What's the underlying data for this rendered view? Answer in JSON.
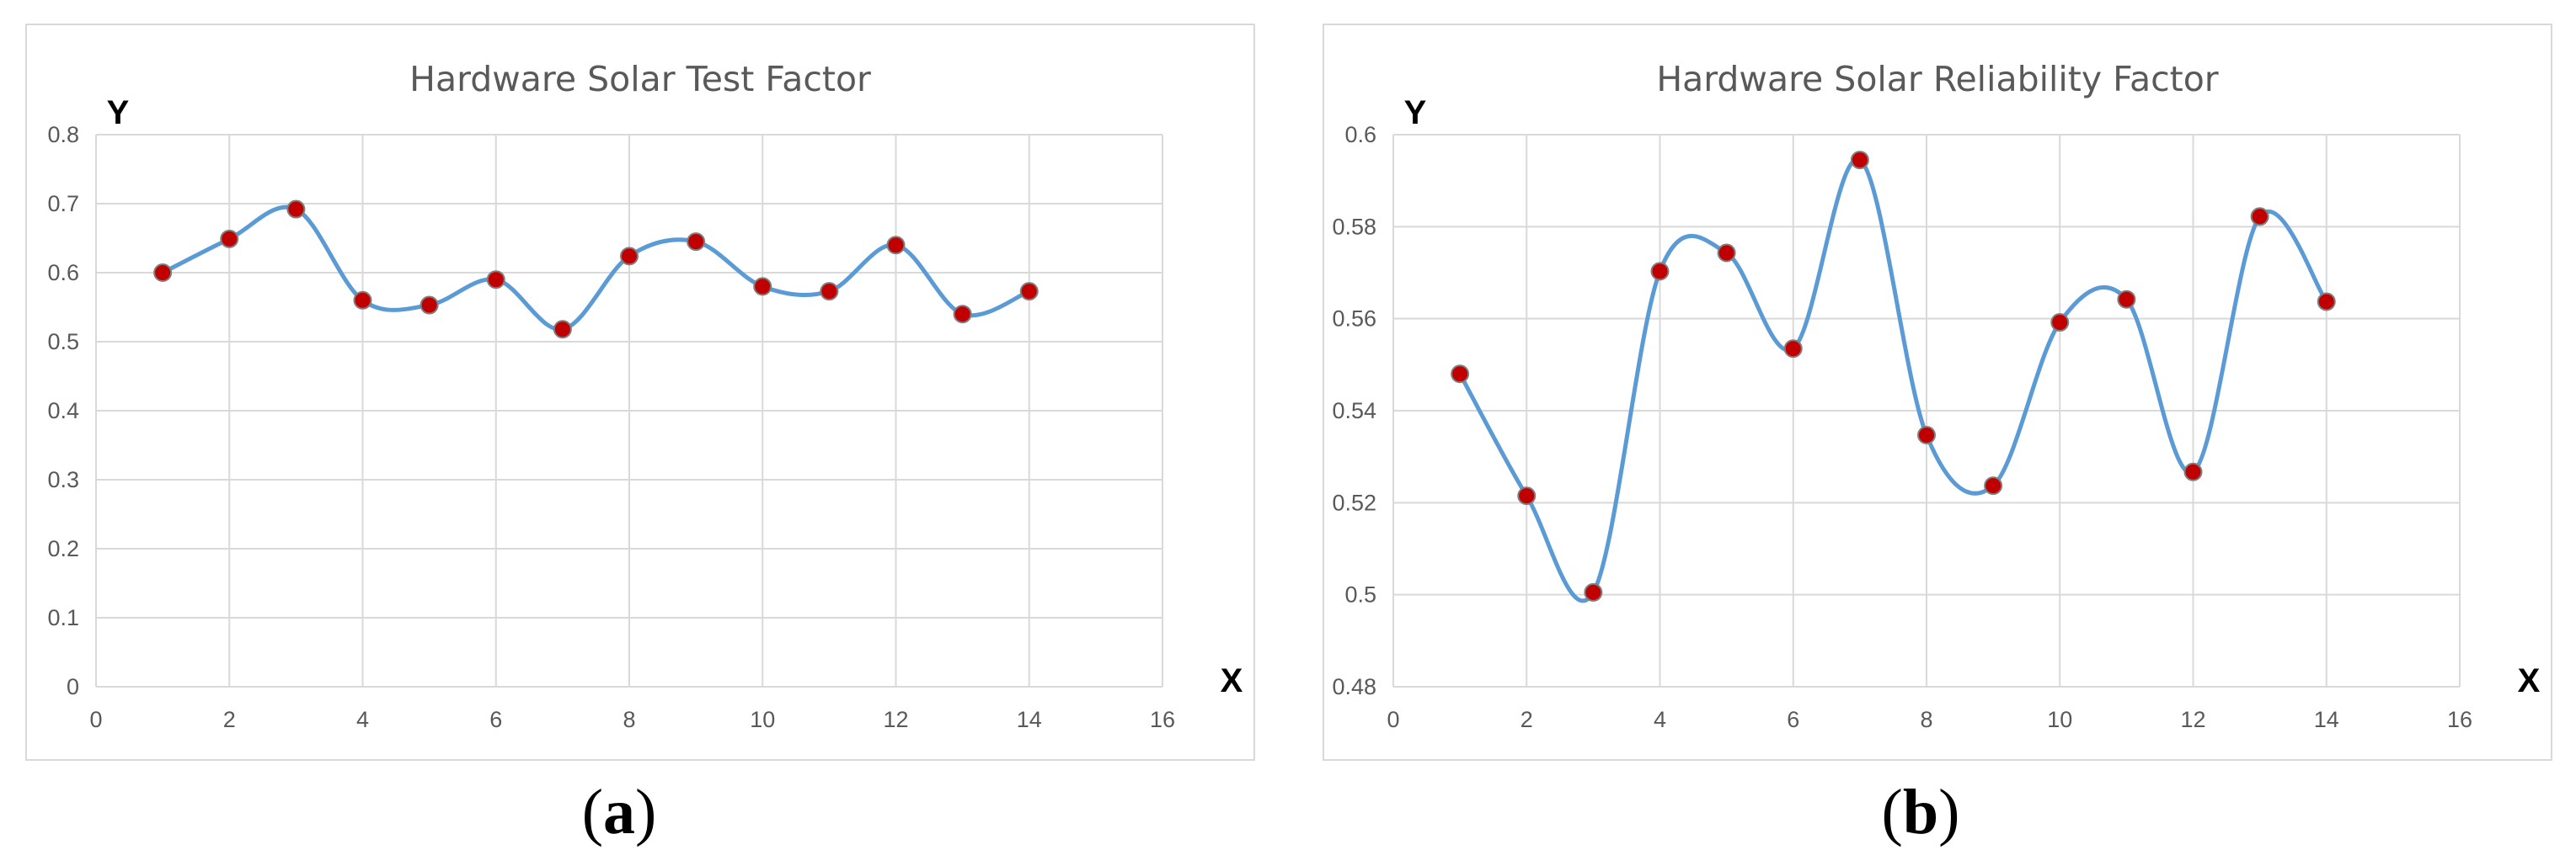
{
  "chart_data": [
    {
      "type": "line",
      "title": "Hardware Solar Test Factor",
      "xlabel": "X",
      "ylabel": "Y",
      "xlim": [
        0,
        16
      ],
      "ylim": [
        0,
        0.8
      ],
      "x_ticks": [
        "0",
        "2",
        "4",
        "6",
        "8",
        "10",
        "12",
        "14",
        "16"
      ],
      "y_ticks": [
        "0",
        "0.1",
        "0.2",
        "0.3",
        "0.4",
        "0.5",
        "0.6",
        "0.7",
        "0.8"
      ],
      "smoothed": true,
      "grid": true,
      "line_color": "#5b9bd5",
      "marker_color": "#c00000",
      "x": [
        1,
        2,
        3,
        4,
        5,
        6,
        7,
        8,
        9,
        10,
        11,
        12,
        13,
        14
      ],
      "y": [
        0.6,
        0.649,
        0.692,
        0.56,
        0.553,
        0.59,
        0.518,
        0.624,
        0.645,
        0.58,
        0.573,
        0.64,
        0.54,
        0.573
      ]
    },
    {
      "type": "line",
      "title": "Hardware Solar Reliability Factor",
      "xlabel": "X",
      "ylabel": "Y",
      "xlim": [
        0,
        16
      ],
      "ylim": [
        0.48,
        0.6
      ],
      "x_ticks": [
        "0",
        "2",
        "4",
        "6",
        "8",
        "10",
        "12",
        "14",
        "16"
      ],
      "y_ticks": [
        "0.48",
        "0.5",
        "0.52",
        "0.54",
        "0.56",
        "0.58",
        "0.6"
      ],
      "smoothed": true,
      "grid": true,
      "line_color": "#5b9bd5",
      "marker_color": "#c00000",
      "x": [
        1,
        2,
        3,
        4,
        5,
        6,
        7,
        8,
        9,
        10,
        11,
        12,
        13,
        14
      ],
      "y": [
        0.548,
        0.5215,
        0.5005,
        0.5703,
        0.5743,
        0.5535,
        0.5945,
        0.5347,
        0.5237,
        0.5592,
        0.5642,
        0.5267,
        0.5822,
        0.5637
      ]
    }
  ],
  "captions": {
    "a": "a",
    "b": "b"
  }
}
